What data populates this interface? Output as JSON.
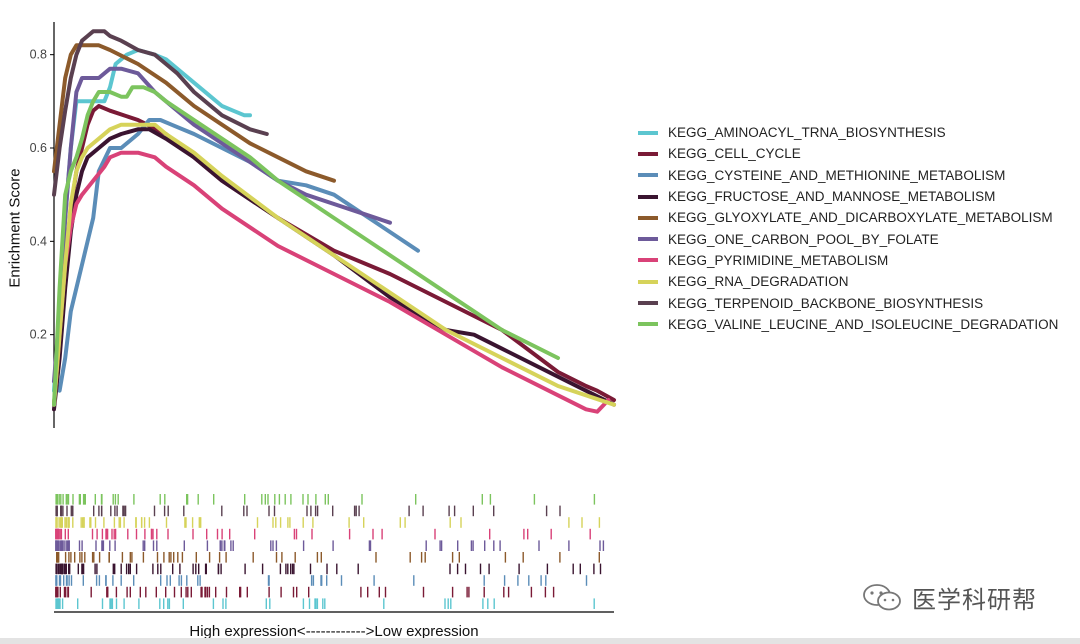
{
  "chart_data": {
    "type": "line",
    "ylabel": "Enrichment Score",
    "xlabel": "High expression<------------>Low expression",
    "ylim": [
      0.0,
      0.87
    ],
    "yticks": [
      0.2,
      0.4,
      0.6,
      0.8
    ],
    "xlim": [
      0,
      100
    ],
    "grid": false,
    "legend_position": "right",
    "series": [
      {
        "name": "KEGG_AMINOACYL_TRNA_BIOSYNTHESIS",
        "color": "#5cc6d0",
        "x": [
          0,
          1,
          2,
          3,
          4,
          5,
          7,
          9,
          10,
          11,
          12,
          13,
          15,
          18,
          20,
          22,
          25,
          28,
          30,
          32,
          34,
          35
        ],
        "y": [
          0.08,
          0.25,
          0.45,
          0.6,
          0.7,
          0.7,
          0.7,
          0.7,
          0.73,
          0.78,
          0.79,
          0.8,
          0.81,
          0.8,
          0.79,
          0.77,
          0.74,
          0.71,
          0.69,
          0.68,
          0.67,
          0.67
        ]
      },
      {
        "name": "KEGG_CELL_CYCLE",
        "color": "#7a1a36",
        "x": [
          0,
          1,
          2,
          3,
          4,
          5,
          6,
          7,
          8,
          10,
          15,
          20,
          25,
          30,
          40,
          50,
          60,
          70,
          80,
          90,
          95,
          97,
          100
        ],
        "y": [
          0.05,
          0.2,
          0.35,
          0.47,
          0.55,
          0.6,
          0.65,
          0.68,
          0.69,
          0.68,
          0.66,
          0.63,
          0.58,
          0.53,
          0.45,
          0.38,
          0.33,
          0.27,
          0.21,
          0.12,
          0.09,
          0.08,
          0.06
        ]
      },
      {
        "name": "KEGG_CYSTEINE_AND_METHIONINE_METABOLISM",
        "color": "#5b8db8",
        "x": [
          0,
          1,
          2,
          3,
          4,
          5,
          6,
          7,
          8,
          10,
          12,
          15,
          17,
          19,
          21,
          25,
          30,
          35,
          40,
          45,
          50,
          55,
          60,
          65
        ],
        "y": [
          0.1,
          0.08,
          0.15,
          0.25,
          0.3,
          0.35,
          0.4,
          0.45,
          0.55,
          0.6,
          0.6,
          0.63,
          0.66,
          0.66,
          0.65,
          0.63,
          0.6,
          0.57,
          0.53,
          0.52,
          0.5,
          0.46,
          0.42,
          0.38
        ]
      },
      {
        "name": "KEGG_FRUCTOSE_AND_MANNOSE_METABOLISM",
        "color": "#3a1430",
        "x": [
          0,
          1,
          2,
          3,
          4,
          5,
          6,
          8,
          10,
          12,
          15,
          17,
          20,
          25,
          30,
          40,
          50,
          60,
          67,
          70,
          75,
          80,
          90,
          100
        ],
        "y": [
          0.04,
          0.15,
          0.3,
          0.42,
          0.5,
          0.55,
          0.58,
          0.6,
          0.62,
          0.63,
          0.64,
          0.64,
          0.62,
          0.58,
          0.53,
          0.45,
          0.37,
          0.28,
          0.23,
          0.21,
          0.2,
          0.17,
          0.11,
          0.05
        ]
      },
      {
        "name": "KEGG_GLYOXYLATE_AND_DICARBOXYLATE_METABOLISM",
        "color": "#8c5a2b",
        "x": [
          0,
          1,
          2,
          3,
          4,
          5,
          6,
          8,
          10,
          15,
          20,
          25,
          30,
          35,
          40,
          45,
          50
        ],
        "y": [
          0.55,
          0.65,
          0.75,
          0.8,
          0.82,
          0.82,
          0.82,
          0.82,
          0.81,
          0.78,
          0.74,
          0.69,
          0.65,
          0.61,
          0.58,
          0.55,
          0.53
        ]
      },
      {
        "name": "KEGG_ONE_CARBON_POOL_BY_FOLATE",
        "color": "#6d5a9a",
        "x": [
          0,
          1,
          2,
          3,
          4,
          5,
          6,
          8,
          10,
          12,
          15,
          18,
          20,
          25,
          30,
          35,
          40,
          45,
          50,
          55,
          60
        ],
        "y": [
          0.1,
          0.25,
          0.45,
          0.6,
          0.72,
          0.75,
          0.75,
          0.75,
          0.77,
          0.77,
          0.76,
          0.72,
          0.7,
          0.65,
          0.61,
          0.57,
          0.53,
          0.5,
          0.48,
          0.46,
          0.44
        ]
      },
      {
        "name": "KEGG_PYRIMIDINE_METABOLISM",
        "color": "#d94278",
        "x": [
          0,
          1,
          2,
          3,
          4,
          5,
          7,
          9,
          10,
          12,
          15,
          18,
          20,
          25,
          30,
          40,
          50,
          55,
          60,
          70,
          80,
          90,
          95,
          97,
          99
        ],
        "y": [
          0.05,
          0.2,
          0.35,
          0.43,
          0.48,
          0.5,
          0.53,
          0.56,
          0.58,
          0.59,
          0.59,
          0.58,
          0.56,
          0.52,
          0.47,
          0.39,
          0.33,
          0.3,
          0.27,
          0.2,
          0.13,
          0.07,
          0.04,
          0.035,
          0.06
        ]
      },
      {
        "name": "KEGG_RNA_DEGRADATION",
        "color": "#d6d35a",
        "x": [
          0,
          1,
          2,
          3,
          4,
          5,
          6,
          8,
          10,
          12,
          15,
          18,
          20,
          25,
          30,
          40,
          50,
          60,
          70,
          80,
          90,
          100
        ],
        "y": [
          0.05,
          0.2,
          0.35,
          0.48,
          0.55,
          0.58,
          0.6,
          0.62,
          0.64,
          0.65,
          0.65,
          0.65,
          0.63,
          0.59,
          0.54,
          0.45,
          0.37,
          0.29,
          0.21,
          0.15,
          0.09,
          0.05
        ]
      },
      {
        "name": "KEGG_TERPENOID_BACKBONE_BIOSYNTHESIS",
        "color": "#5a4050",
        "x": [
          0,
          1,
          2,
          3,
          4,
          5,
          6,
          7,
          8,
          9,
          10,
          12,
          15,
          18,
          20,
          22,
          25,
          30,
          35,
          38
        ],
        "y": [
          0.5,
          0.6,
          0.68,
          0.75,
          0.8,
          0.83,
          0.84,
          0.85,
          0.85,
          0.85,
          0.84,
          0.83,
          0.81,
          0.8,
          0.78,
          0.76,
          0.72,
          0.67,
          0.64,
          0.63
        ]
      },
      {
        "name": "KEGG_VALINE_LEUCINE_AND_ISOLEUCINE_DEGRADATION",
        "color": "#7cc45e",
        "x": [
          0,
          1,
          2,
          3,
          4,
          5,
          6,
          7,
          8,
          10,
          12,
          13,
          14,
          15,
          16,
          18,
          20,
          25,
          30,
          35,
          40,
          45,
          50,
          60,
          70,
          80,
          90
        ],
        "y": [
          0.05,
          0.3,
          0.5,
          0.55,
          0.58,
          0.62,
          0.67,
          0.7,
          0.72,
          0.72,
          0.71,
          0.71,
          0.73,
          0.73,
          0.73,
          0.72,
          0.7,
          0.66,
          0.62,
          0.58,
          0.53,
          0.49,
          0.45,
          0.37,
          0.29,
          0.21,
          0.15
        ]
      }
    ],
    "rug_rows_order_top_to_bottom": [
      "KEGG_VALINE_LEUCINE_AND_ISOLEUCINE_DEGRADATION",
      "KEGG_TERPENOID_BACKBONE_BIOSYNTHESIS",
      "KEGG_RNA_DEGRADATION",
      "KEGG_PYRIMIDINE_METABOLISM",
      "KEGG_ONE_CARBON_POOL_BY_FOLATE",
      "KEGG_GLYOXYLATE_AND_DICARBOXYLATE_METABOLISM",
      "KEGG_FRUCTOSE_AND_MANNOSE_METABOLISM",
      "KEGG_CYSTEINE_AND_METHIONINE_METABOLISM",
      "KEGG_CELL_CYCLE",
      "KEGG_AMINOACYL_TRNA_BIOSYNTHESIS"
    ]
  },
  "watermark": {
    "text": "医学科研帮",
    "icon": "wechat-icon"
  }
}
